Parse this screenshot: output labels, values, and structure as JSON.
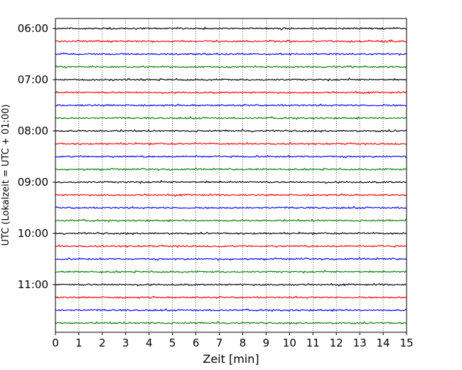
{
  "chart_data": {
    "type": "line",
    "chart_kind": "seismogram helicorder (drum plot)",
    "xlabel": "Zeit  [min]",
    "ylabel": "UTC (Lokalzeit = UTC + 01:00)",
    "xlim": [
      0,
      15
    ],
    "x_ticks": [
      "0",
      "1",
      "2",
      "3",
      "4",
      "5",
      "6",
      "7",
      "8",
      "9",
      "10",
      "11",
      "12",
      "13",
      "14",
      "15"
    ],
    "y_tick_labels": [
      "06:00",
      "07:00",
      "08:00",
      "09:00",
      "10:00",
      "11:00"
    ],
    "grid": "vertical dotted lines at each minute",
    "trace_interval_minutes": 15,
    "trace_color_cycle": [
      "#000000",
      "#ff0000",
      "#0000ff",
      "#008000"
    ],
    "traces": [
      {
        "start": "06:00",
        "color": "#000000"
      },
      {
        "start": "06:15",
        "color": "#ff0000"
      },
      {
        "start": "06:30",
        "color": "#0000ff"
      },
      {
        "start": "06:45",
        "color": "#008000"
      },
      {
        "start": "07:00",
        "color": "#000000"
      },
      {
        "start": "07:15",
        "color": "#ff0000"
      },
      {
        "start": "07:30",
        "color": "#0000ff"
      },
      {
        "start": "07:45",
        "color": "#008000"
      },
      {
        "start": "08:00",
        "color": "#000000"
      },
      {
        "start": "08:15",
        "color": "#ff0000"
      },
      {
        "start": "08:30",
        "color": "#0000ff"
      },
      {
        "start": "08:45",
        "color": "#008000"
      },
      {
        "start": "09:00",
        "color": "#000000"
      },
      {
        "start": "09:15",
        "color": "#ff0000"
      },
      {
        "start": "09:30",
        "color": "#0000ff"
      },
      {
        "start": "09:45",
        "color": "#008000"
      },
      {
        "start": "10:00",
        "color": "#000000"
      },
      {
        "start": "10:15",
        "color": "#ff0000"
      },
      {
        "start": "10:30",
        "color": "#0000ff"
      },
      {
        "start": "10:45",
        "color": "#008000"
      },
      {
        "start": "11:00",
        "color": "#000000"
      },
      {
        "start": "11:15",
        "color": "#ff0000"
      },
      {
        "start": "11:30",
        "color": "#0000ff"
      },
      {
        "start": "11:45",
        "color": "#008000"
      }
    ]
  }
}
